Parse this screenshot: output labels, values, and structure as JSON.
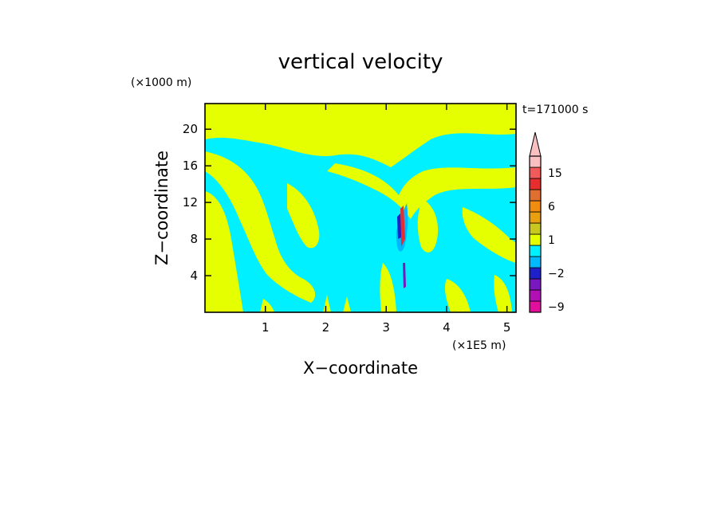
{
  "chart_data": {
    "type": "heatmap",
    "title": "vertical velocity",
    "xlabel": "X−coordinate",
    "ylabel": "Z−coordinate",
    "x_unit": "(×1E5 m)",
    "y_unit": "(×1000 m)",
    "time_label": "t=171000 s",
    "xlim": [
      0,
      5.15
    ],
    "ylim": [
      0,
      22.8
    ],
    "x_ticks": [
      1,
      2,
      3,
      4,
      5
    ],
    "y_ticks": [
      4,
      8,
      12,
      16,
      20
    ],
    "colorbar": {
      "levels": [
        {
          "color": "#e0109c"
        },
        {
          "color": "#b010b4"
        },
        {
          "color": "#7a18c0"
        },
        {
          "color": "#2020c8"
        },
        {
          "color": "#00b8ff"
        },
        {
          "color": "#00f0ff"
        },
        {
          "color": "#e6ff00"
        },
        {
          "color": "#c8c820"
        },
        {
          "color": "#e8a010"
        },
        {
          "color": "#f08c10"
        },
        {
          "color": "#e07030"
        },
        {
          "color": "#e62e2e"
        },
        {
          "color": "#f05a5a"
        },
        {
          "color": "#f8c0c0"
        }
      ],
      "tick_labels": [
        {
          "label": "−9",
          "level": 0.5
        },
        {
          "label": "−2",
          "level": 3.5
        },
        {
          "label": "1",
          "level": 6.5
        },
        {
          "label": "6",
          "level": 9.5
        },
        {
          "label": "15",
          "level": 12.5
        }
      ]
    },
    "colors": {
      "background_field": "#00f0ff",
      "updraft_field": "#e6ff00",
      "strong_updraft": "#e62e2e",
      "strong_downdraft": "#2020c8"
    }
  }
}
